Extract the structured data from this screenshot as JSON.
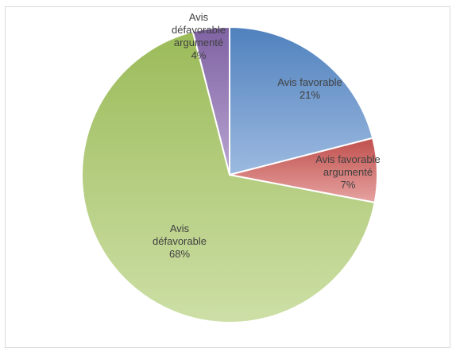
{
  "chart_data": {
    "type": "pie",
    "title": "",
    "slices": [
      {
        "label_lines": [
          "Avis favorable",
          "21%"
        ],
        "category": "Avis favorable",
        "value": 21,
        "color_light": "#9dbae0",
        "color_dark": "#4f81bd"
      },
      {
        "label_lines": [
          "Avis favorable",
          "argumenté",
          "7%"
        ],
        "category": "Avis favorable argumenté",
        "value": 7,
        "color_light": "#e6a3a1",
        "color_dark": "#c0504d"
      },
      {
        "label_lines": [
          "Avis",
          "défavorable",
          "68%"
        ],
        "category": "Avis défavorable",
        "value": 68,
        "color_light": "#cddfa6",
        "color_dark": "#9bbb59"
      },
      {
        "label_lines": [
          "Avis",
          "défavorable",
          "argumenté",
          "4%"
        ],
        "category": "Avis défavorable argumenté",
        "value": 4,
        "color_light": "#b9a5d1",
        "color_dark": "#7f62a3"
      }
    ],
    "legend": "none"
  }
}
